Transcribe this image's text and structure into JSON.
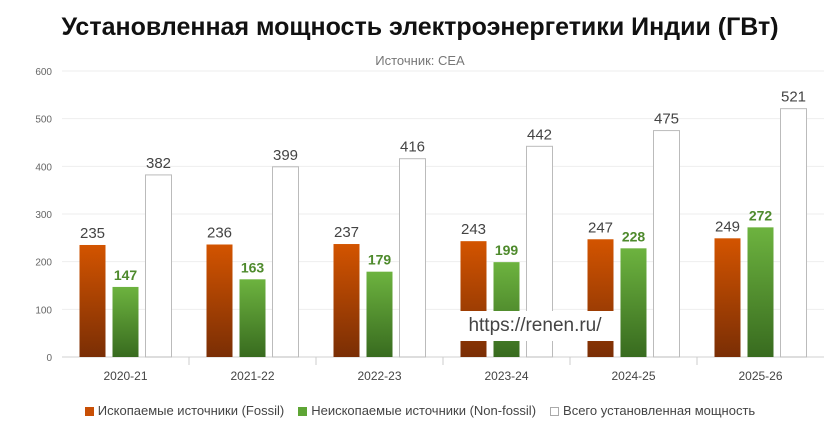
{
  "chart_data": {
    "type": "bar",
    "title": "Установленная мощность электроэнергетики Индии (ГВт)",
    "subtitle": "Источник: CEA",
    "categories": [
      "2020-21",
      "2021-22",
      "2022-23",
      "2023-24",
      "2024-25",
      "2025-26"
    ],
    "series": [
      {
        "name": "Ископаемые источники (Fossil)",
        "values": [
          235,
          236,
          237,
          243,
          247,
          249
        ],
        "color": "#d35400",
        "color_dark": "#7a2e05"
      },
      {
        "name": "Неископаемые источники (Non-fossil)",
        "values": [
          147,
          163,
          179,
          199,
          228,
          272
        ],
        "color": "#6db33f",
        "color_dark": "#386b1f"
      },
      {
        "name": "Всего установленная мощность",
        "values": [
          382,
          399,
          416,
          442,
          475,
          521
        ],
        "color": "#ffffff"
      }
    ],
    "ylim": [
      0,
      600
    ],
    "yticks": [
      0,
      100,
      200,
      300,
      400,
      500,
      600
    ],
    "grid": true,
    "legend": "bottom"
  },
  "watermark": "https://renen.ru/"
}
